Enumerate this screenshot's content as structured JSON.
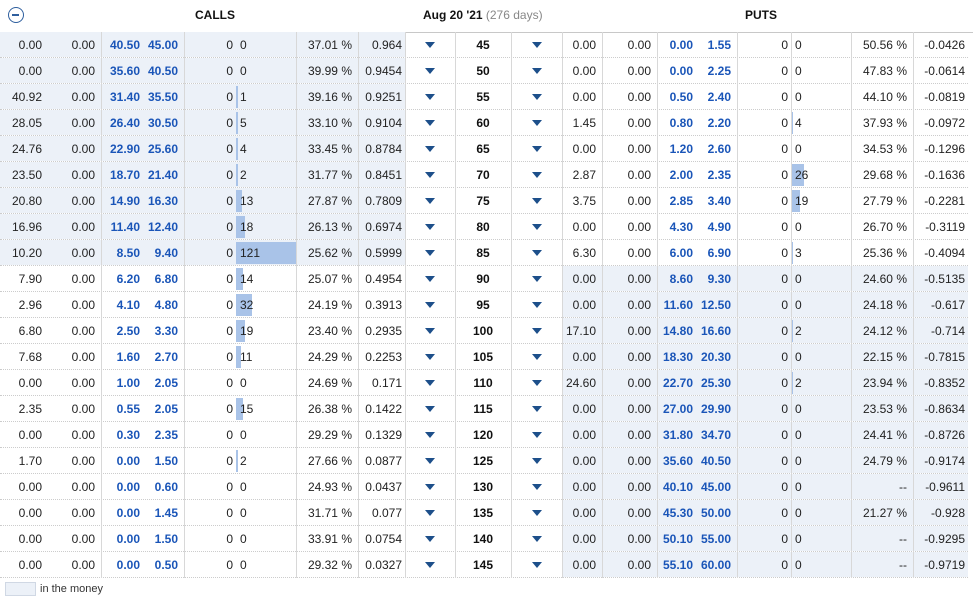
{
  "header": {
    "calls_label": "CALLS",
    "expiry": "Aug 20 '21",
    "days": "(276 days)",
    "puts_label": "PUTS",
    "collapse_icon": "minus-circle-icon"
  },
  "legend": {
    "label": "in the money",
    "swatch_color": "#ecf1f8"
  },
  "rows": [
    {
      "strike": "45",
      "call_itm": true,
      "put_itm": false,
      "c": [
        "0.00",
        "0.00",
        "40.50",
        "45.00",
        "0",
        "0",
        "37.01 %",
        "0.964"
      ],
      "cbar": 0,
      "p": [
        "0.00",
        "0.00",
        "0.00",
        "1.55",
        "0",
        "0",
        "50.56 %",
        "-0.0426"
      ],
      "pbar": 0
    },
    {
      "strike": "50",
      "call_itm": true,
      "put_itm": false,
      "c": [
        "0.00",
        "0.00",
        "35.60",
        "40.50",
        "0",
        "0",
        "39.99 %",
        "0.9454"
      ],
      "cbar": 0,
      "p": [
        "0.00",
        "0.00",
        "0.00",
        "2.25",
        "0",
        "0",
        "47.83 %",
        "-0.0614"
      ],
      "pbar": 0
    },
    {
      "strike": "55",
      "call_itm": true,
      "put_itm": false,
      "c": [
        "40.92",
        "0.00",
        "31.40",
        "35.50",
        "0",
        "1",
        "39.16 %",
        "0.9251"
      ],
      "cbar": 1,
      "p": [
        "0.00",
        "0.00",
        "0.50",
        "2.40",
        "0",
        "0",
        "44.10 %",
        "-0.0819"
      ],
      "pbar": 0
    },
    {
      "strike": "60",
      "call_itm": true,
      "put_itm": false,
      "c": [
        "28.05",
        "0.00",
        "26.40",
        "30.50",
        "0",
        "5",
        "33.10 %",
        "0.9104"
      ],
      "cbar": 5,
      "p": [
        "1.45",
        "0.00",
        "0.80",
        "2.20",
        "0",
        "4",
        "37.93 %",
        "-0.0972"
      ],
      "pbar": 4
    },
    {
      "strike": "65",
      "call_itm": true,
      "put_itm": false,
      "c": [
        "24.76",
        "0.00",
        "22.90",
        "25.60",
        "0",
        "4",
        "33.45 %",
        "0.8784"
      ],
      "cbar": 4,
      "p": [
        "0.00",
        "0.00",
        "1.20",
        "2.60",
        "0",
        "0",
        "34.53 %",
        "-0.1296"
      ],
      "pbar": 0
    },
    {
      "strike": "70",
      "call_itm": true,
      "put_itm": false,
      "c": [
        "23.50",
        "0.00",
        "18.70",
        "21.40",
        "0",
        "2",
        "31.77 %",
        "0.8451"
      ],
      "cbar": 2,
      "p": [
        "2.87",
        "0.00",
        "2.00",
        "2.35",
        "0",
        "26",
        "29.68 %",
        "-0.1636"
      ],
      "pbar": 26
    },
    {
      "strike": "75",
      "call_itm": true,
      "put_itm": false,
      "c": [
        "20.80",
        "0.00",
        "14.90",
        "16.30",
        "0",
        "13",
        "27.87 %",
        "0.7809"
      ],
      "cbar": 13,
      "p": [
        "3.75",
        "0.00",
        "2.85",
        "3.40",
        "0",
        "19",
        "27.79 %",
        "-0.2281"
      ],
      "pbar": 19
    },
    {
      "strike": "80",
      "call_itm": true,
      "put_itm": false,
      "c": [
        "16.96",
        "0.00",
        "11.40",
        "12.40",
        "0",
        "18",
        "26.13 %",
        "0.6974"
      ],
      "cbar": 18,
      "p": [
        "0.00",
        "0.00",
        "4.30",
        "4.90",
        "0",
        "0",
        "26.70 %",
        "-0.3119"
      ],
      "pbar": 0
    },
    {
      "strike": "85",
      "call_itm": true,
      "put_itm": false,
      "c": [
        "10.20",
        "0.00",
        "8.50",
        "9.40",
        "0",
        "121",
        "25.62 %",
        "0.5999"
      ],
      "cbar": 121,
      "p": [
        "6.30",
        "0.00",
        "6.00",
        "6.90",
        "0",
        "3",
        "25.36 %",
        "-0.4094"
      ],
      "pbar": 3
    },
    {
      "strike": "90",
      "call_itm": false,
      "put_itm": true,
      "c": [
        "7.90",
        "0.00",
        "6.20",
        "6.80",
        "0",
        "14",
        "25.07 %",
        "0.4954"
      ],
      "cbar": 14,
      "p": [
        "0.00",
        "0.00",
        "8.60",
        "9.30",
        "0",
        "0",
        "24.60 %",
        "-0.5135"
      ],
      "pbar": 0
    },
    {
      "strike": "95",
      "call_itm": false,
      "put_itm": true,
      "c": [
        "2.96",
        "0.00",
        "4.10",
        "4.80",
        "0",
        "32",
        "24.19 %",
        "0.3913"
      ],
      "cbar": 32,
      "p": [
        "0.00",
        "0.00",
        "11.60",
        "12.50",
        "0",
        "0",
        "24.18 %",
        "-0.617"
      ],
      "pbar": 0
    },
    {
      "strike": "100",
      "call_itm": false,
      "put_itm": true,
      "c": [
        "6.80",
        "0.00",
        "2.50",
        "3.30",
        "0",
        "19",
        "23.40 %",
        "0.2935"
      ],
      "cbar": 19,
      "p": [
        "17.10",
        "0.00",
        "14.80",
        "16.60",
        "0",
        "2",
        "24.12 %",
        "-0.714"
      ],
      "pbar": 2
    },
    {
      "strike": "105",
      "call_itm": false,
      "put_itm": true,
      "c": [
        "7.68",
        "0.00",
        "1.60",
        "2.70",
        "0",
        "11",
        "24.29 %",
        "0.2253"
      ],
      "cbar": 11,
      "p": [
        "0.00",
        "0.00",
        "18.30",
        "20.30",
        "0",
        "0",
        "22.15 %",
        "-0.7815"
      ],
      "pbar": 0
    },
    {
      "strike": "110",
      "call_itm": false,
      "put_itm": true,
      "c": [
        "0.00",
        "0.00",
        "1.00",
        "2.05",
        "0",
        "0",
        "24.69 %",
        "0.171"
      ],
      "cbar": 0,
      "p": [
        "24.60",
        "0.00",
        "22.70",
        "25.30",
        "0",
        "2",
        "23.94 %",
        "-0.8352"
      ],
      "pbar": 2
    },
    {
      "strike": "115",
      "call_itm": false,
      "put_itm": true,
      "c": [
        "2.35",
        "0.00",
        "0.55",
        "2.05",
        "0",
        "15",
        "26.38 %",
        "0.1422"
      ],
      "cbar": 15,
      "p": [
        "0.00",
        "0.00",
        "27.00",
        "29.90",
        "0",
        "0",
        "23.53 %",
        "-0.8634"
      ],
      "pbar": 0
    },
    {
      "strike": "120",
      "call_itm": false,
      "put_itm": true,
      "c": [
        "0.00",
        "0.00",
        "0.30",
        "2.35",
        "0",
        "0",
        "29.29 %",
        "0.1329"
      ],
      "cbar": 0,
      "p": [
        "0.00",
        "0.00",
        "31.80",
        "34.70",
        "0",
        "0",
        "24.41 %",
        "-0.8726"
      ],
      "pbar": 0
    },
    {
      "strike": "125",
      "call_itm": false,
      "put_itm": true,
      "c": [
        "1.70",
        "0.00",
        "0.00",
        "1.50",
        "0",
        "2",
        "27.66 %",
        "0.0877"
      ],
      "cbar": 2,
      "p": [
        "0.00",
        "0.00",
        "35.60",
        "40.50",
        "0",
        "0",
        "24.79 %",
        "-0.9174"
      ],
      "pbar": 0
    },
    {
      "strike": "130",
      "call_itm": false,
      "put_itm": true,
      "c": [
        "0.00",
        "0.00",
        "0.00",
        "0.60",
        "0",
        "0",
        "24.93 %",
        "0.0437"
      ],
      "cbar": 0,
      "p": [
        "0.00",
        "0.00",
        "40.10",
        "45.00",
        "0",
        "0",
        "--",
        "-0.9611"
      ],
      "pbar": 0
    },
    {
      "strike": "135",
      "call_itm": false,
      "put_itm": true,
      "c": [
        "0.00",
        "0.00",
        "0.00",
        "1.45",
        "0",
        "0",
        "31.71 %",
        "0.077"
      ],
      "cbar": 0,
      "p": [
        "0.00",
        "0.00",
        "45.30",
        "50.00",
        "0",
        "0",
        "21.27 %",
        "-0.928"
      ],
      "pbar": 0
    },
    {
      "strike": "140",
      "call_itm": false,
      "put_itm": true,
      "c": [
        "0.00",
        "0.00",
        "0.00",
        "1.50",
        "0",
        "0",
        "33.91 %",
        "0.0754"
      ],
      "cbar": 0,
      "p": [
        "0.00",
        "0.00",
        "50.10",
        "55.00",
        "0",
        "0",
        "--",
        "-0.9295"
      ],
      "pbar": 0
    },
    {
      "strike": "145",
      "call_itm": false,
      "put_itm": true,
      "c": [
        "0.00",
        "0.00",
        "0.00",
        "0.50",
        "0",
        "0",
        "29.32 %",
        "0.0327"
      ],
      "cbar": 0,
      "p": [
        "0.00",
        "0.00",
        "55.10",
        "60.00",
        "0",
        "0",
        "--",
        "-0.9719"
      ],
      "pbar": 0
    }
  ]
}
